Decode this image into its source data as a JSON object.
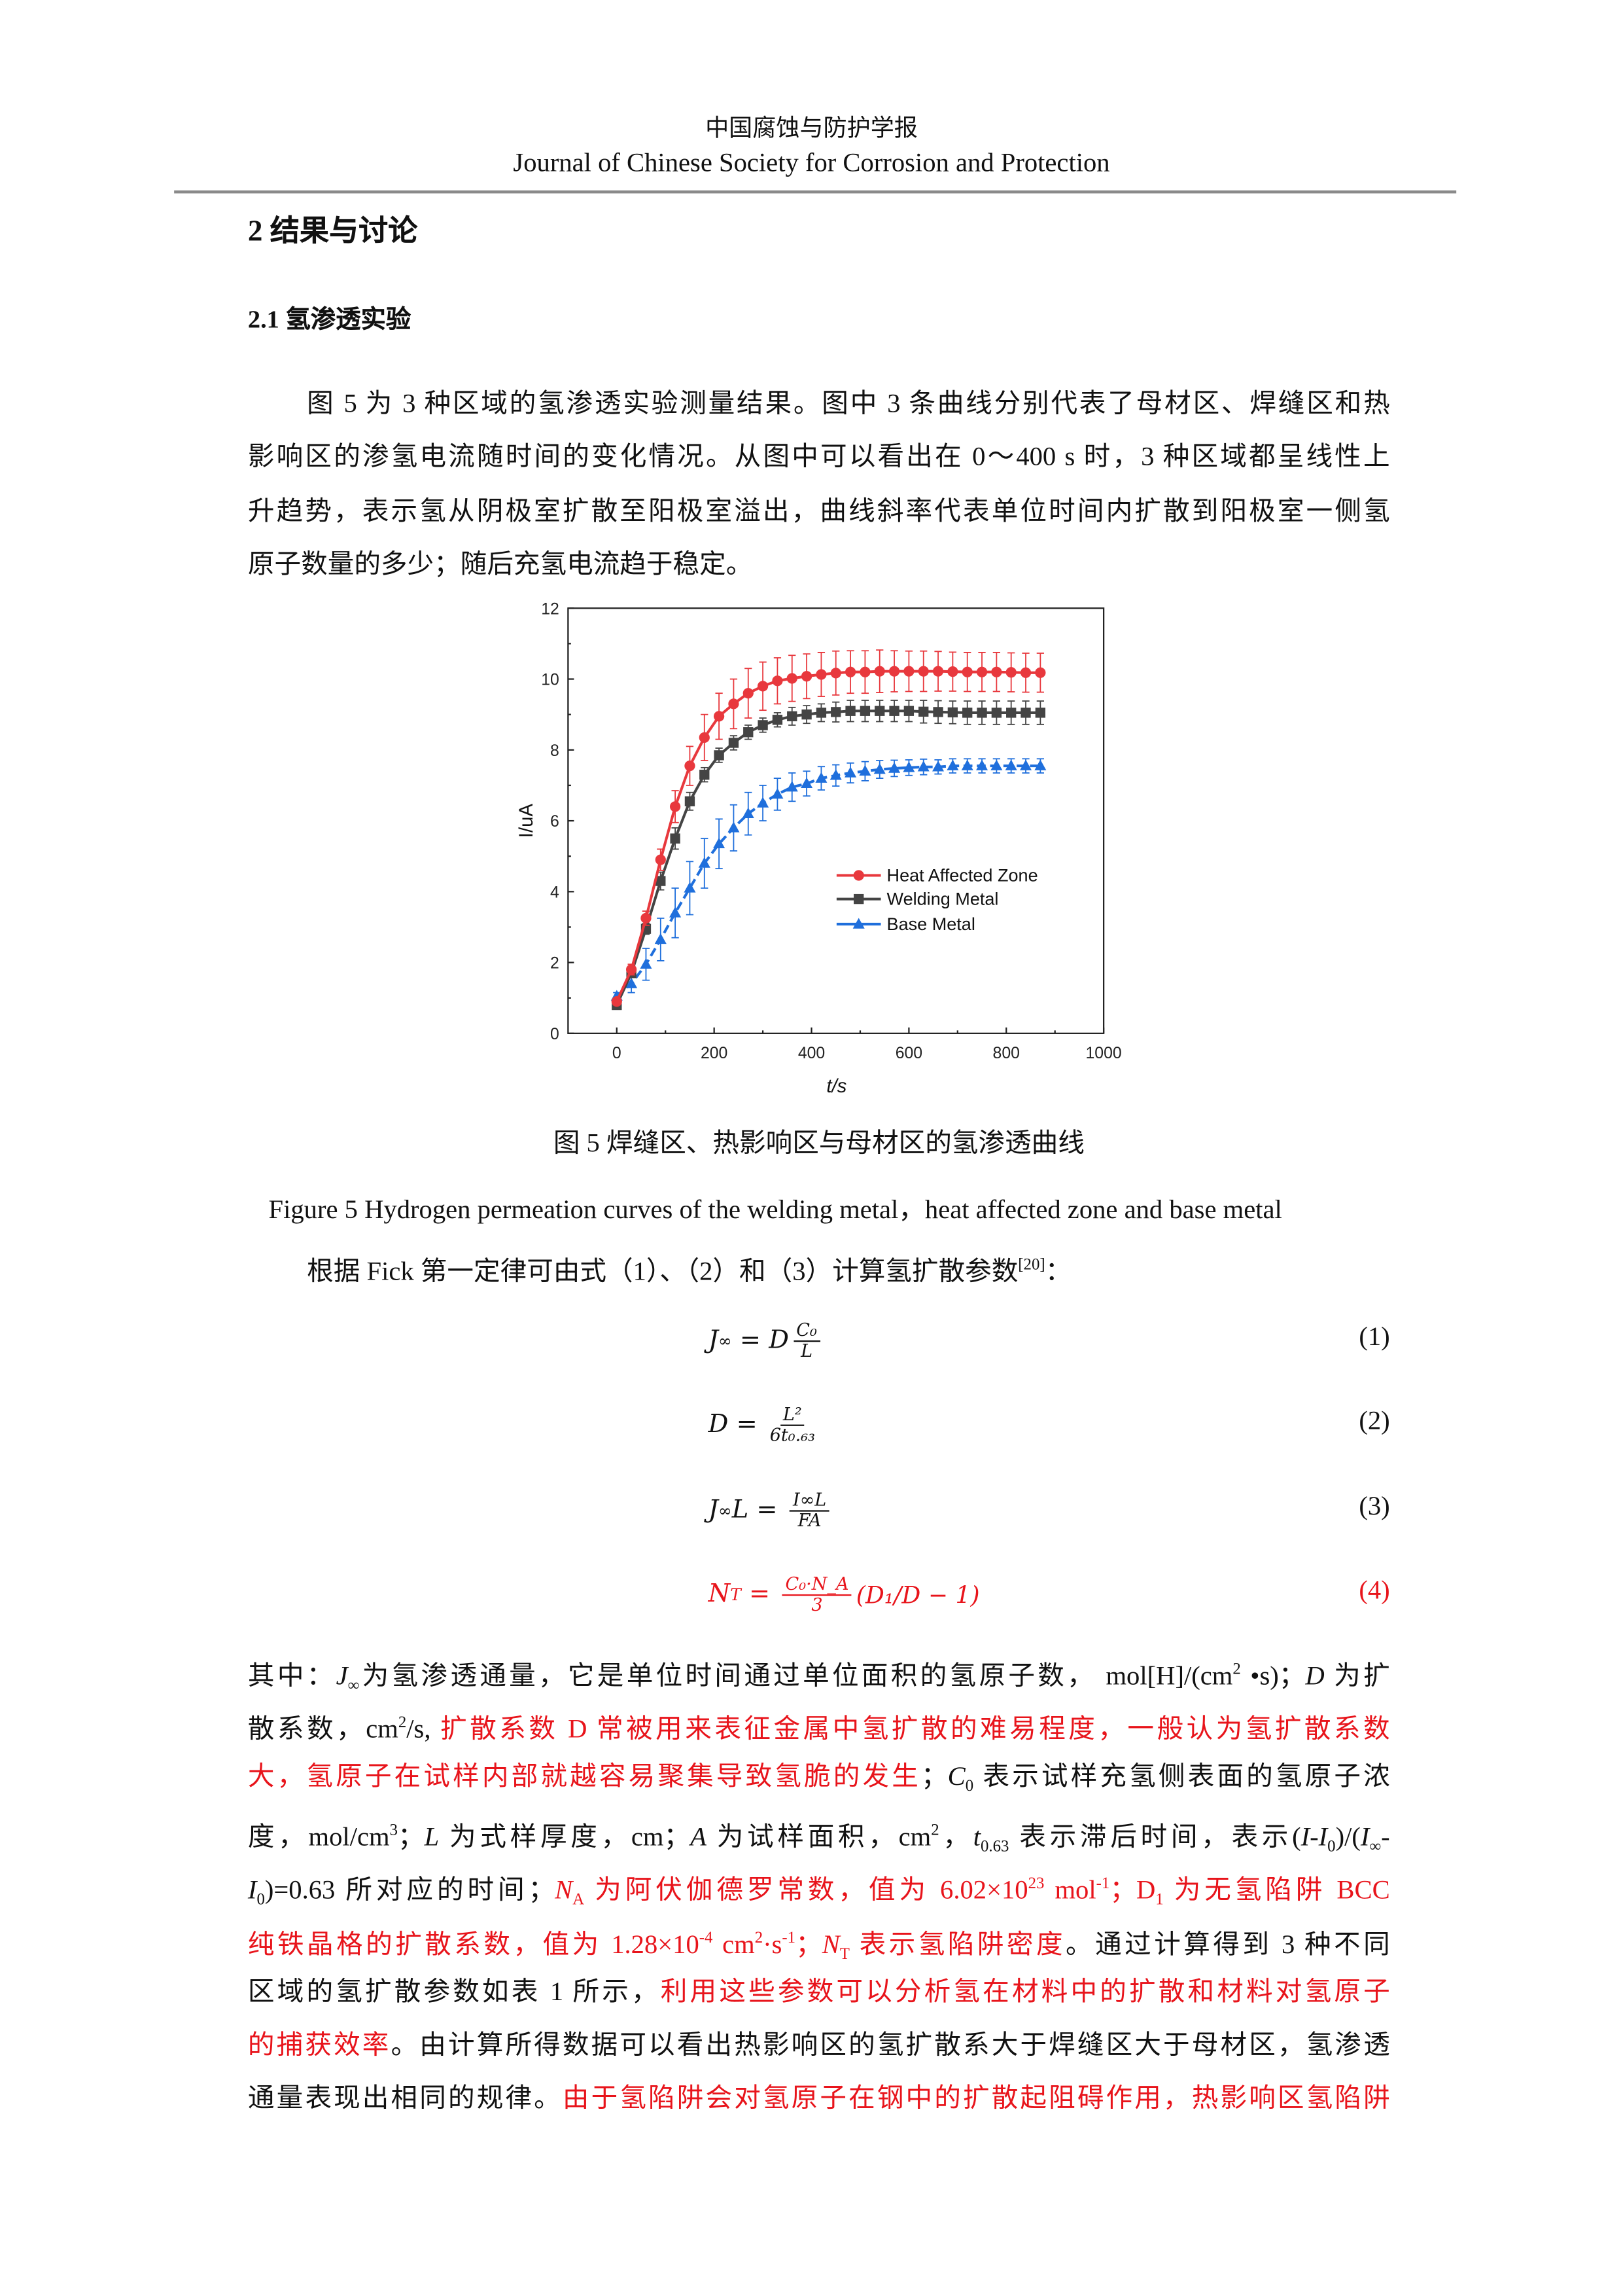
{
  "header": {
    "journal_cn": "中国腐蚀与防护学报",
    "journal_en": "Journal of Chinese Society for Corrosion and Protection"
  },
  "section": {
    "title": "2 结果与讨论",
    "subsection": "2.1  氢渗透实验"
  },
  "colors": {
    "red": "#e8141b",
    "haz": "#e8383d",
    "wm": "#444444",
    "bm": "#1f6fdc"
  },
  "para1": {
    "lines": [
      "图 5 为 3 种区域的氢渗透实验测量结果。图中 3 条曲线分别代表了母材区、焊缝区和热",
      "影响区的渗氢电流随时间的变化情况。从图中可以看出在 0～400 s 时，3 种区域都呈线性上",
      "升趋势，表示氢从阴极室扩散至阳极室溢出，曲线斜率代表单位时间内扩散到阳极室一侧氢",
      "原子数量的多少；随后充氢电流趋于稳定。"
    ]
  },
  "chart_data": {
    "type": "line",
    "xlabel": "t/s",
    "ylabel": "I/uA",
    "xlim": [
      -100,
      1000
    ],
    "ylim": [
      0,
      12
    ],
    "xticks": [
      "0",
      "200",
      "400",
      "600",
      "800",
      "1000"
    ],
    "yticks": [
      "0",
      "2",
      "4",
      "6",
      "8",
      "10",
      "12"
    ],
    "grid": false,
    "legend": "center-right",
    "x": [
      0,
      30,
      60,
      90,
      120,
      150,
      180,
      210,
      240,
      270,
      300,
      330,
      360,
      390,
      420,
      450,
      480,
      510,
      540,
      570,
      600,
      630,
      660,
      690,
      720,
      750,
      780,
      810,
      840,
      870
    ],
    "series": [
      {
        "name": "Heat Affected Zone",
        "marker": "circle",
        "color": "#e8383d",
        "values": [
          0.9,
          1.8,
          3.25,
          4.9,
          6.4,
          7.55,
          8.35,
          8.95,
          9.3,
          9.6,
          9.8,
          9.95,
          10.02,
          10.08,
          10.13,
          10.17,
          10.2,
          10.2,
          10.22,
          10.22,
          10.22,
          10.22,
          10.22,
          10.21,
          10.2,
          10.2,
          10.2,
          10.19,
          10.18,
          10.18
        ],
        "error": [
          0.1,
          0.15,
          0.2,
          0.3,
          0.45,
          0.55,
          0.65,
          0.65,
          0.7,
          0.7,
          0.68,
          0.65,
          0.65,
          0.63,
          0.62,
          0.62,
          0.6,
          0.6,
          0.6,
          0.58,
          0.57,
          0.57,
          0.56,
          0.55,
          0.55,
          0.55,
          0.55,
          0.55,
          0.55,
          0.55
        ]
      },
      {
        "name": "Welding Metal",
        "marker": "square",
        "color": "#444444",
        "values": [
          0.8,
          1.7,
          2.95,
          4.3,
          5.5,
          6.55,
          7.3,
          7.85,
          8.2,
          8.5,
          8.7,
          8.85,
          8.95,
          9.0,
          9.05,
          9.07,
          9.1,
          9.1,
          9.1,
          9.1,
          9.1,
          9.08,
          9.07,
          9.06,
          9.05,
          9.05,
          9.05,
          9.05,
          9.05,
          9.05
        ],
        "error": [
          0.05,
          0.1,
          0.15,
          0.25,
          0.3,
          0.25,
          0.2,
          0.2,
          0.2,
          0.2,
          0.2,
          0.2,
          0.25,
          0.25,
          0.25,
          0.28,
          0.3,
          0.3,
          0.3,
          0.3,
          0.3,
          0.32,
          0.32,
          0.32,
          0.33,
          0.33,
          0.33,
          0.33,
          0.33,
          0.33
        ]
      },
      {
        "name": "Base Metal",
        "marker": "triangle",
        "color": "#1f6fdc",
        "values": [
          1.05,
          1.4,
          1.95,
          2.65,
          3.4,
          4.1,
          4.8,
          5.35,
          5.8,
          6.2,
          6.5,
          6.75,
          6.95,
          7.05,
          7.2,
          7.28,
          7.35,
          7.4,
          7.45,
          7.48,
          7.5,
          7.52,
          7.52,
          7.55,
          7.55,
          7.55,
          7.55,
          7.55,
          7.55,
          7.55
        ],
        "error": [
          0.1,
          0.25,
          0.45,
          0.6,
          0.7,
          0.75,
          0.7,
          0.7,
          0.65,
          0.6,
          0.5,
          0.45,
          0.4,
          0.35,
          0.33,
          0.3,
          0.28,
          0.27,
          0.25,
          0.23,
          0.22,
          0.22,
          0.2,
          0.2,
          0.2,
          0.2,
          0.2,
          0.2,
          0.2,
          0.2
        ]
      }
    ]
  },
  "captions": {
    "cn": "图 5 焊缝区、热影响区与母材区的氢渗透曲线",
    "en": "Figure 5 Hydrogen permeation curves of the welding metal，heat affected zone and base metal"
  },
  "para2": {
    "text": "根据 Fick 第一定律可由式（1）、（2）和（3）计算氢扩散参数",
    "ref": "[20]",
    "end": "："
  },
  "equations": [
    {
      "lhs": "J",
      "lhs_sub": "∞",
      "eq": " = ",
      "pre": "D",
      "num": "C₀",
      "den": "L",
      "post": "",
      "number": "(1)"
    },
    {
      "lhs": "D",
      "lhs_sub": "",
      "eq": " = ",
      "pre": "",
      "num": "L²",
      "den": "6t₀.₆₃",
      "post": "",
      "number": "(2)"
    },
    {
      "lhs": "J",
      "lhs_sub": "∞",
      "lhs_post": "L",
      "eq": " = ",
      "pre": "",
      "num": "I∞L",
      "den": "FA",
      "post": "",
      "number": "(3)"
    },
    {
      "lhs": "N",
      "lhs_sub": "T",
      "eq": " = ",
      "pre": "",
      "num": "C₀·N_A",
      "den": "3",
      "post": "(D₁/D − 1)",
      "number": "(4)",
      "red": true
    }
  ],
  "para3": {
    "lines": [
      [
        {
          "t": "其中："
        },
        {
          "t": "J",
          "f": "it"
        },
        {
          "t": "∞",
          "f": "sub"
        },
        {
          "t": "为氢渗透通量，它是单位时间通过单位面积的氢原子数， mol[H]/(cm"
        },
        {
          "t": "2",
          "f": "sup"
        },
        {
          "t": " •s)；"
        },
        {
          "t": "D",
          "f": "it"
        },
        {
          "t": " 为扩"
        }
      ],
      [
        {
          "t": "散系数，cm"
        },
        {
          "t": "2",
          "f": "sup"
        },
        {
          "t": "/s, "
        },
        {
          "t": "扩散系数 D 常被用来表征金属中氢扩散的难易程度，一般认为氢扩散系数",
          "c": "r"
        }
      ],
      [
        {
          "t": "大，氢原子在试样内部就越容易聚集导致氢脆的发生",
          "c": "r"
        },
        {
          "t": "；"
        },
        {
          "t": "C",
          "f": "it"
        },
        {
          "t": "0",
          "f": "sub"
        },
        {
          "t": " 表示试样充氢侧表面的氢原子浓"
        }
      ],
      [
        {
          "t": "度，mol/cm"
        },
        {
          "t": "3",
          "f": "sup"
        },
        {
          "t": "；"
        },
        {
          "t": "L",
          "f": "it"
        },
        {
          "t": " 为式样厚度，cm；"
        },
        {
          "t": "A",
          "f": "it"
        },
        {
          "t": " 为试样面积，cm"
        },
        {
          "t": "2",
          "f": "sup"
        },
        {
          "t": "，"
        },
        {
          "t": "t",
          "f": "it"
        },
        {
          "t": "0.63",
          "f": "sub"
        },
        {
          "t": " 表示滞后时间，表示("
        },
        {
          "t": "I-I",
          "f": "it"
        },
        {
          "t": "0",
          "f": "sub"
        },
        {
          "t": ")/("
        },
        {
          "t": "I",
          "f": "it"
        },
        {
          "t": "∞",
          "f": "sub"
        },
        {
          "t": "-"
        }
      ],
      [
        {
          "t": "I",
          "f": "it"
        },
        {
          "t": "0",
          "f": "sub"
        },
        {
          "t": ")=0.63 所对应的时间；"
        },
        {
          "t": "N",
          "f": "it",
          "c": "r"
        },
        {
          "t": "A",
          "f": "sub",
          "c": "r"
        },
        {
          "t": " 为阿伏伽德罗常数，值为 6.02×10",
          "c": "r"
        },
        {
          "t": "23",
          "f": "sup",
          "c": "r"
        },
        {
          "t": " mol",
          "c": "r"
        },
        {
          "t": "-1",
          "f": "sup",
          "c": "r"
        },
        {
          "t": "；D",
          "c": "r"
        },
        {
          "t": "1",
          "f": "sub",
          "c": "r"
        },
        {
          "t": " 为无氢陷阱 BCC",
          "c": "r"
        }
      ],
      [
        {
          "t": "纯铁晶格的扩散系数，值为 1.28×10",
          "c": "r"
        },
        {
          "t": "-4",
          "f": "sup",
          "c": "r"
        },
        {
          "t": " cm",
          "c": "r"
        },
        {
          "t": "2",
          "f": "sup",
          "c": "r"
        },
        {
          "t": "·s",
          "c": "r"
        },
        {
          "t": "-1",
          "f": "sup",
          "c": "r"
        },
        {
          "t": "；",
          "c": "r"
        },
        {
          "t": "N",
          "f": "it",
          "c": "r"
        },
        {
          "t": "T",
          "f": "sub",
          "c": "r"
        },
        {
          "t": " 表示氢陷阱密度",
          "c": "r"
        },
        {
          "t": "。通过计算得到 3 种不同"
        }
      ],
      [
        {
          "t": "区域的氢扩散参数如表 1 所示，"
        },
        {
          "t": "利用这些参数可以分析氢在材料中的扩散和材料对氢原子",
          "c": "r"
        }
      ],
      [
        {
          "t": "的捕获效率",
          "c": "r"
        },
        {
          "t": "。由计算所得数据可以看出热影响区的氢扩散系大于焊缝区大于母材区，氢渗透"
        }
      ],
      [
        {
          "t": "通量表现出相同的规律。"
        },
        {
          "t": "由于氢陷阱会对氢原子在钢中的扩散起阻碍作用，热影响区氢陷阱",
          "c": "r"
        }
      ]
    ]
  }
}
